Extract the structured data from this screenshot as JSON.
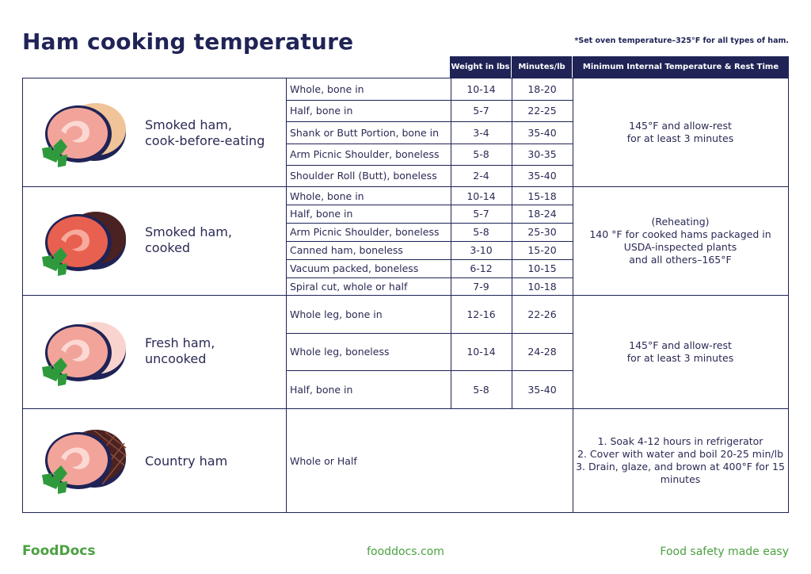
{
  "title": "Ham cooking temperature",
  "note": "*Set oven temperature–325°F for all types of ham.",
  "headers": {
    "weight": "Weight in lbs",
    "minutes": "Minutes/lb",
    "temp": "Minimum Internal Temperature & Rest Time"
  },
  "sections": [
    {
      "name": "Smoked ham,\ncook-before-eating",
      "icon": "smoked-ham-uncooked-icon",
      "temp": "145°F and allow-rest\nfor at least 3 minutes",
      "rows": [
        {
          "type": "Whole, bone in",
          "weight": "10-14",
          "minutes": "18-20"
        },
        {
          "type": "Half, bone in",
          "weight": "5-7",
          "minutes": "22-25"
        },
        {
          "type": "Shank or Butt Portion, bone in",
          "weight": "3-4",
          "minutes": "35-40"
        },
        {
          "type": "Arm Picnic Shoulder, boneless",
          "weight": "5-8",
          "minutes": "30-35"
        },
        {
          "type": "Shoulder Roll (Butt), boneless",
          "weight": "2-4",
          "minutes": "35-40"
        }
      ]
    },
    {
      "name": "Smoked ham,\ncooked",
      "icon": "smoked-ham-cooked-icon",
      "temp": "(Reheating)\n140 °F for cooked hams packaged in\nUSDA-inspected plants\nand all others–165°F",
      "rows": [
        {
          "type": "Whole, bone in",
          "weight": "10-14",
          "minutes": "15-18"
        },
        {
          "type": "Half, bone in",
          "weight": "5-7",
          "minutes": "18-24"
        },
        {
          "type": "Arm Picnic Shoulder, boneless",
          "weight": "5-8",
          "minutes": "25-30"
        },
        {
          "type": "Canned ham, boneless",
          "weight": "3-10",
          "minutes": "15-20"
        },
        {
          "type": "Vacuum packed, boneless",
          "weight": "6-12",
          "minutes": "10-15"
        },
        {
          "type": "Spiral cut, whole or half",
          "weight": "7-9",
          "minutes": "10-18"
        }
      ]
    },
    {
      "name": "Fresh ham,\nuncooked",
      "icon": "fresh-ham-icon",
      "temp": "145°F and allow-rest\nfor at least 3 minutes",
      "rows": [
        {
          "type": "Whole leg, bone in",
          "weight": "12-16",
          "minutes": "22-26"
        },
        {
          "type": "Whole leg, boneless",
          "weight": "10-14",
          "minutes": "24-28"
        },
        {
          "type": "Half, bone in",
          "weight": "5-8",
          "minutes": "35-40"
        }
      ]
    },
    {
      "name": "Country ham",
      "icon": "country-ham-icon",
      "temp": "1. Soak 4-12 hours in refrigerator\n2. Cover with water and boil 20-25 min/lb\n3. Drain, glaze, and brown at 400°F for 15\nminutes",
      "rows": [
        {
          "type": "Whole or Half",
          "weight": "",
          "minutes": ""
        }
      ]
    }
  ],
  "footer": {
    "logo": "FoodDocs",
    "url": "fooddocs.com",
    "tagline": "Food safety made easy"
  },
  "colors": {
    "navy": "#1f2356",
    "green": "#4aa140",
    "ham_pink": "#f2a49a",
    "ham_red": "#e8604f",
    "rind_tan": "#f0c498",
    "rind_brown": "#4a2222",
    "rind_light_pink": "#f9d4cf",
    "leaf_green": "#2f9a3c"
  }
}
